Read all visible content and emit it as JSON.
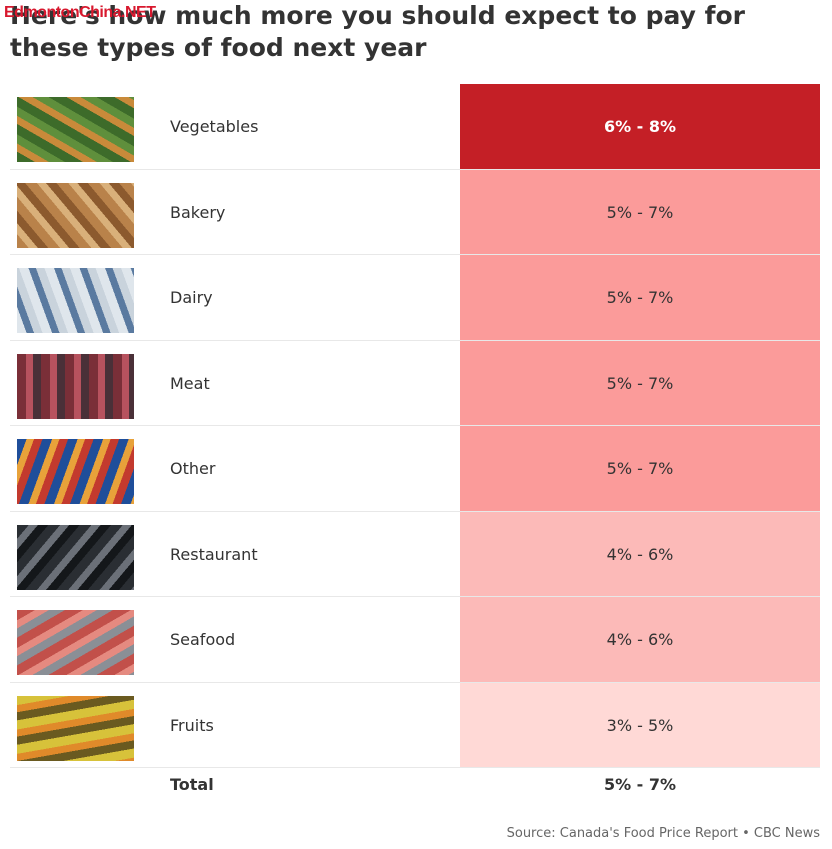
{
  "title": "Here's how much more you should expect to pay for these types of food next year",
  "watermark": "EdmontonChina.NET",
  "table": {
    "rows": [
      {
        "category": "Vegetables",
        "range": "6% - 8%",
        "color": "#c41f26"
      },
      {
        "category": "Bakery",
        "range": "5% - 7%",
        "color": "#fb9b9a"
      },
      {
        "category": "Dairy",
        "range": "5% - 7%",
        "color": "#fb9b9a"
      },
      {
        "category": "Meat",
        "range": "5% - 7%",
        "color": "#fb9b9a"
      },
      {
        "category": "Other",
        "range": "5% - 7%",
        "color": "#fb9b9a"
      },
      {
        "category": "Restaurant",
        "range": "4% - 6%",
        "color": "#fcbab8"
      },
      {
        "category": "Seafood",
        "range": "4% - 6%",
        "color": "#fcbab8"
      },
      {
        "category": "Fruits",
        "range": "3% - 5%",
        "color": "#ffd9d6"
      }
    ],
    "total": {
      "category": "Total",
      "range": "5% - 7%"
    }
  },
  "source": "Source: Canada's Food Price Report • CBC News"
}
